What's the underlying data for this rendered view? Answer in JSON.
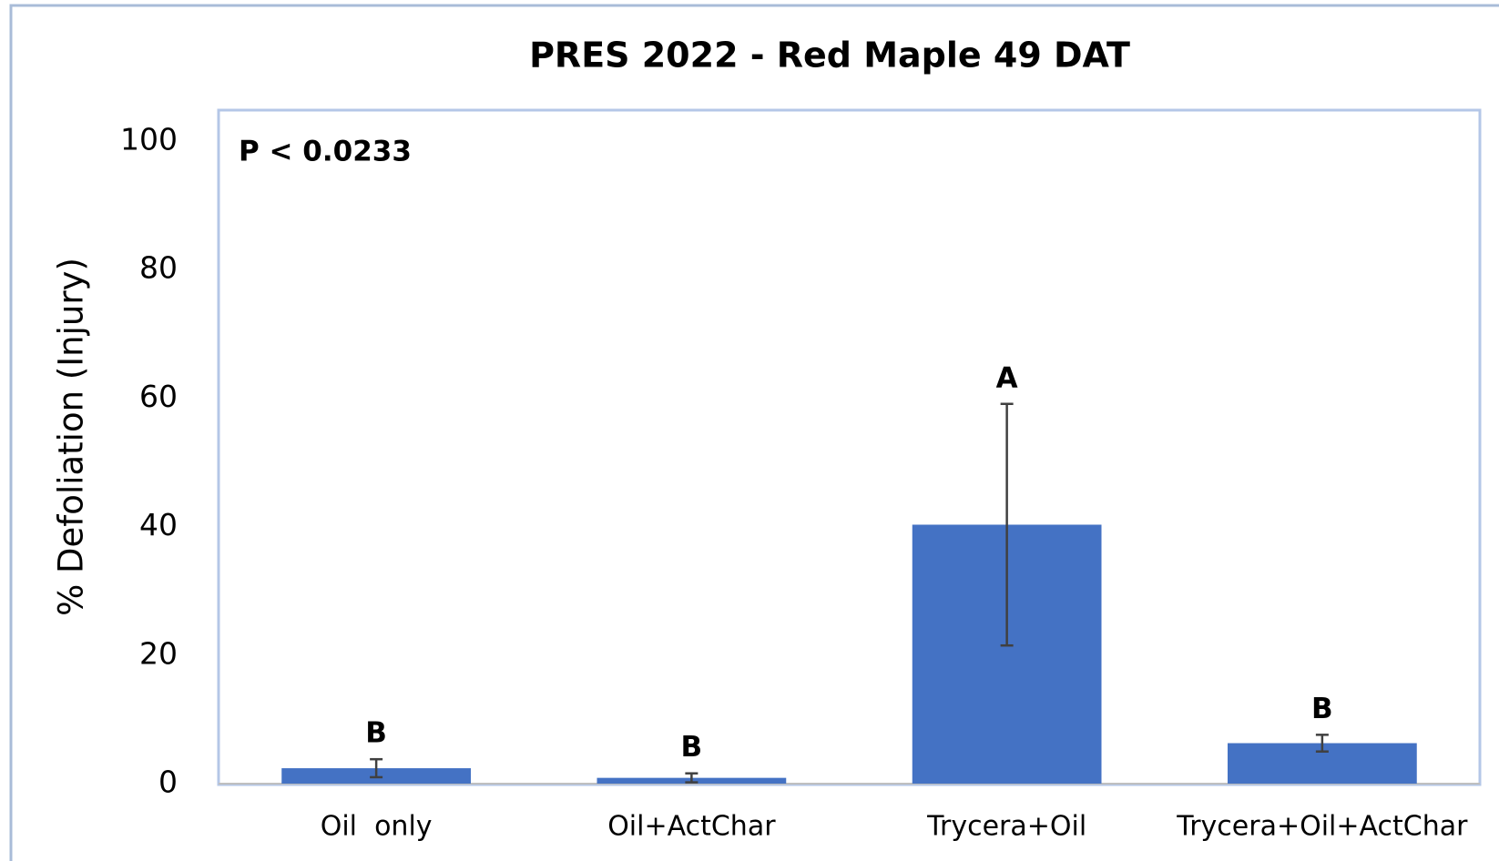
{
  "chart_data": {
    "type": "bar",
    "title": "PRES 2022 - Red Maple 49 DAT",
    "ylabel": "% Defoliation (Injury)",
    "annotation": "P < 0.0233",
    "categories": [
      "Oil  only",
      "Oil+ActChar",
      "Trycera+Oil",
      "Trycera+Oil+ActChar"
    ],
    "values": [
      2.4,
      0.9,
      40.3,
      6.3
    ],
    "errors": [
      1.4,
      0.7,
      18.8,
      1.3
    ],
    "letters": [
      "B",
      "B",
      "A",
      "B"
    ],
    "color": "#4472c4",
    "ylim": [
      0,
      100
    ],
    "yticks": [
      0,
      20,
      40,
      60,
      80,
      100
    ],
    "grid": false
  }
}
